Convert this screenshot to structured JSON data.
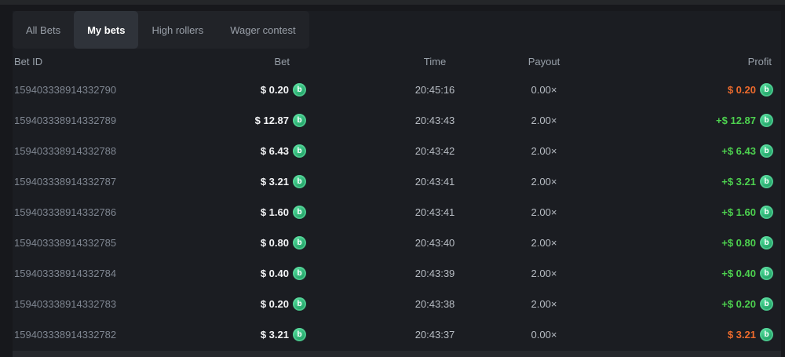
{
  "tabs": [
    {
      "label": "All Bets",
      "active": false
    },
    {
      "label": "My bets",
      "active": true
    },
    {
      "label": "High rollers",
      "active": false
    },
    {
      "label": "Wager contest",
      "active": false
    }
  ],
  "table": {
    "columns": [
      "Bet ID",
      "Bet",
      "Time",
      "Payout",
      "Profit"
    ],
    "rows": [
      {
        "bet_id": "159403338914332790",
        "bet": "$ 0.20",
        "time": "20:45:16",
        "payout": "0.00×",
        "profit": "$ 0.20",
        "profit_state": "loss"
      },
      {
        "bet_id": "159403338914332789",
        "bet": "$ 12.87",
        "time": "20:43:43",
        "payout": "2.00×",
        "profit": "+$ 12.87",
        "profit_state": "win"
      },
      {
        "bet_id": "159403338914332788",
        "bet": "$ 6.43",
        "time": "20:43:42",
        "payout": "2.00×",
        "profit": "+$ 6.43",
        "profit_state": "win"
      },
      {
        "bet_id": "159403338914332787",
        "bet": "$ 3.21",
        "time": "20:43:41",
        "payout": "2.00×",
        "profit": "+$ 3.21",
        "profit_state": "win"
      },
      {
        "bet_id": "159403338914332786",
        "bet": "$ 1.60",
        "time": "20:43:41",
        "payout": "2.00×",
        "profit": "+$ 1.60",
        "profit_state": "win"
      },
      {
        "bet_id": "159403338914332785",
        "bet": "$ 0.80",
        "time": "20:43:40",
        "payout": "2.00×",
        "profit": "+$ 0.80",
        "profit_state": "win"
      },
      {
        "bet_id": "159403338914332784",
        "bet": "$ 0.40",
        "time": "20:43:39",
        "payout": "2.00×",
        "profit": "+$ 0.40",
        "profit_state": "win"
      },
      {
        "bet_id": "159403338914332783",
        "bet": "$ 0.20",
        "time": "20:43:38",
        "payout": "2.00×",
        "profit": "+$ 0.20",
        "profit_state": "win"
      },
      {
        "bet_id": "159403338914332782",
        "bet": "$ 3.21",
        "time": "20:43:37",
        "payout": "0.00×",
        "profit": "$ 3.21",
        "profit_state": "loss"
      }
    ]
  },
  "icons": {
    "coin_letter": "b",
    "coin_name": "green-b-coin-icon"
  },
  "colors": {
    "profit_win": "#4dd14f",
    "profit_loss": "#ed6b2d",
    "coin_green": "#1e9e63",
    "panel_bg": "#1b1d22",
    "page_bg": "#17181c",
    "active_tab_bg": "#2f333a"
  }
}
